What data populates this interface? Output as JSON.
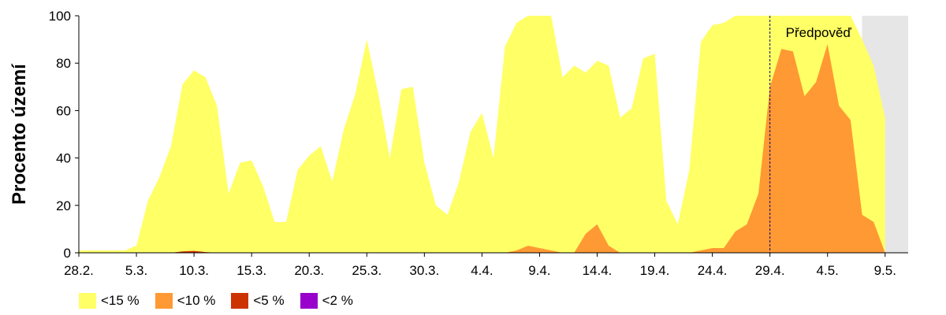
{
  "chart_data": {
    "type": "area",
    "title": "",
    "xlabel": "",
    "ylabel": "Procento území",
    "ylim": [
      0,
      100
    ],
    "yticks": [
      "0",
      "20",
      "40",
      "60",
      "80",
      "100"
    ],
    "xlim": [
      0,
      72
    ],
    "xticks": [
      {
        "x": 0,
        "label": "28.2."
      },
      {
        "x": 5,
        "label": "5.3."
      },
      {
        "x": 10,
        "label": "10.3."
      },
      {
        "x": 15,
        "label": "15.3."
      },
      {
        "x": 20,
        "label": "20.3."
      },
      {
        "x": 25,
        "label": "25.3."
      },
      {
        "x": 30,
        "label": "30.3."
      },
      {
        "x": 35,
        "label": "4.4."
      },
      {
        "x": 40,
        "label": "9.4."
      },
      {
        "x": 45,
        "label": "14.4."
      },
      {
        "x": 50,
        "label": "19.4."
      },
      {
        "x": 55,
        "label": "24.4."
      },
      {
        "x": 60,
        "label": "29.4."
      },
      {
        "x": 65,
        "label": "4.5."
      },
      {
        "x": 70,
        "label": "9.5."
      }
    ],
    "forecast_start": 60,
    "forecast_label": "Předpověď",
    "nodata_color": "#e6e6e6",
    "series": [
      {
        "name": "<15 %",
        "color": "#ffff66",
        "points": [
          [
            0,
            1
          ],
          [
            1,
            1
          ],
          [
            2,
            1
          ],
          [
            3,
            1
          ],
          [
            4,
            1
          ],
          [
            5,
            3
          ],
          [
            6,
            22
          ],
          [
            7,
            32
          ],
          [
            8,
            45
          ],
          [
            9,
            71
          ],
          [
            10,
            77
          ],
          [
            11,
            74
          ],
          [
            12,
            62
          ],
          [
            13,
            25
          ],
          [
            14,
            38
          ],
          [
            15,
            39
          ],
          [
            16,
            28
          ],
          [
            17,
            13
          ],
          [
            18,
            13
          ],
          [
            19,
            35
          ],
          [
            20,
            41
          ],
          [
            21,
            45
          ],
          [
            22,
            30
          ],
          [
            23,
            52
          ],
          [
            24,
            67
          ],
          [
            25,
            90
          ],
          [
            26,
            67
          ],
          [
            27,
            40
          ],
          [
            28,
            69
          ],
          [
            29,
            70
          ],
          [
            30,
            38
          ],
          [
            31,
            20
          ],
          [
            32,
            16
          ],
          [
            33,
            30
          ],
          [
            34,
            51
          ],
          [
            35,
            59
          ],
          [
            36,
            40
          ],
          [
            37,
            87
          ],
          [
            38,
            97
          ],
          [
            39,
            100
          ],
          [
            40,
            100
          ],
          [
            41,
            100
          ],
          [
            42,
            74
          ],
          [
            43,
            79
          ],
          [
            44,
            76
          ],
          [
            45,
            81
          ],
          [
            46,
            79
          ],
          [
            47,
            57
          ],
          [
            48,
            61
          ],
          [
            49,
            82
          ],
          [
            50,
            84
          ],
          [
            51,
            22
          ],
          [
            52,
            12
          ],
          [
            53,
            35
          ],
          [
            54,
            89
          ],
          [
            55,
            96
          ],
          [
            56,
            97
          ],
          [
            57,
            100
          ],
          [
            58,
            100
          ],
          [
            59,
            100
          ],
          [
            60,
            100
          ],
          [
            61,
            100
          ],
          [
            62,
            100
          ],
          [
            63,
            100
          ],
          [
            64,
            100
          ],
          [
            65,
            100
          ],
          [
            66,
            100
          ],
          [
            67,
            100
          ],
          [
            68,
            90
          ],
          [
            69,
            79
          ],
          [
            70,
            57
          ]
        ]
      },
      {
        "name": "<10 %",
        "color": "#ff9933",
        "points": [
          [
            0,
            0
          ],
          [
            37,
            0
          ],
          [
            38,
            1
          ],
          [
            39,
            3
          ],
          [
            40,
            2
          ],
          [
            41,
            1
          ],
          [
            42,
            0
          ],
          [
            43,
            0
          ],
          [
            44,
            8
          ],
          [
            45,
            12
          ],
          [
            46,
            3
          ],
          [
            47,
            0
          ],
          [
            53,
            0
          ],
          [
            54,
            1
          ],
          [
            55,
            2
          ],
          [
            56,
            2
          ],
          [
            57,
            9
          ],
          [
            58,
            12
          ],
          [
            59,
            25
          ],
          [
            60,
            70
          ],
          [
            61,
            86
          ],
          [
            62,
            85
          ],
          [
            63,
            66
          ],
          [
            64,
            72
          ],
          [
            65,
            88
          ],
          [
            66,
            62
          ],
          [
            67,
            56
          ],
          [
            68,
            16
          ],
          [
            69,
            13
          ],
          [
            70,
            0
          ]
        ]
      },
      {
        "name": "<5 %",
        "color": "#cc3300",
        "points": [
          [
            0,
            0
          ],
          [
            8,
            0
          ],
          [
            9,
            0.6
          ],
          [
            10,
            0.8
          ],
          [
            11,
            0.3
          ],
          [
            12,
            0
          ],
          [
            70,
            0
          ]
        ]
      },
      {
        "name": "<2 %",
        "color": "#9900cc",
        "points": [
          [
            0,
            0
          ],
          [
            70,
            0
          ]
        ]
      }
    ],
    "grid": false,
    "legend_position": "bottom-left"
  }
}
